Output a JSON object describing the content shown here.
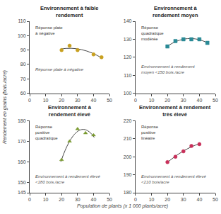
{
  "chart_data": {
    "type": "scatter",
    "xlabel": "Population de plants (x 1 000 plants/acre)",
    "ylabel": "Rendement en grains (bois./acre)",
    "grid": false,
    "subplots": [
      {
        "type": "scatter",
        "title": "Environnement à faible\nrendement",
        "xlim": [
          0,
          50
        ],
        "xticks": [
          0,
          10,
          20,
          30,
          40,
          50
        ],
        "ylim": [
          60,
          110
        ],
        "yticks": [
          60,
          70,
          80,
          90,
          100,
          110
        ],
        "series": [
          {
            "type": "line",
            "color": "#444444",
            "line_style": "solid",
            "x": [
              19.5,
              22.75,
              26,
              29.25,
              32.5,
              35.75,
              39,
              42.25,
              45.5
            ],
            "values": [
              90.72,
              91.15,
              91.22,
              90.95,
              90.32,
              89.33,
              88.0,
              86.31,
              84.27
            ]
          },
          {
            "type": "scatter",
            "color": "#c8a020",
            "marker": "circle",
            "x": [
              20,
              25,
              30,
              40,
              45
            ],
            "values": [
              90,
              93,
              90,
              87,
              85
            ]
          }
        ],
        "annotations": [
          "Réponse plate\nà négative",
          "Réponse plate à négative"
        ]
      },
      {
        "type": "scatter",
        "title": "Environnement à\nrendement moyen",
        "xlim": [
          0,
          50
        ],
        "xticks": [
          0,
          10,
          20,
          30,
          40,
          50
        ],
        "ylim": [
          100,
          140
        ],
        "yticks": [
          100,
          110,
          120,
          130,
          140
        ],
        "series": [
          {
            "type": "line",
            "color": "#444444",
            "line_style": "solid",
            "x": [
              19.5,
              22.75,
              26,
              29.25,
              32.5,
              35.75,
              39,
              42.25,
              45.5
            ],
            "values": [
              125.88,
              127.65,
              128.99,
              129.88,
              130.34,
              130.37,
              129.95,
              129.1,
              127.81
            ]
          },
          {
            "type": "scatter",
            "color": "#2a8a96",
            "marker": "square",
            "x": [
              20,
              25,
              30,
              35,
              40,
              45
            ],
            "values": [
              126,
              129,
              130,
              130,
              130,
              128
            ]
          }
        ],
        "annotations": [
          "Réponse\nquadratique\nmodérée",
          "Environnement à rendement\nmoyen <150 bois./acre"
        ]
      },
      {
        "type": "scatter",
        "title": "Environnement à\nrendement élevé",
        "xlim": [
          0,
          50
        ],
        "xticks": [
          0,
          10,
          20,
          30,
          40,
          50
        ],
        "ylim": [
          145,
          180
        ],
        "yticks": [
          145,
          150,
          160,
          170,
          180
        ],
        "series": [
          {
            "type": "line",
            "color": "#444444",
            "line_style": "solid",
            "x": [
              19.5,
              22.125,
              24.75,
              27.375,
              30,
              32.625,
              35.25,
              37.875,
              40.5
            ],
            "values": [
              160.1,
              165.43,
              169.66,
              172.78,
              174.8,
              175.72,
              175.54,
              174.25,
              171.86
            ]
          },
          {
            "type": "scatter",
            "color": "#7a9a30",
            "marker": "triangle",
            "x": [
              20,
              25,
              30,
              35,
              40
            ],
            "values": [
              161,
              170,
              176,
              174,
              173
            ]
          }
        ],
        "annotations": [
          "Réponse\npositive\nquadratique",
          "Environnement à rendement élevé\n<180 bois./acre"
        ]
      },
      {
        "type": "scatter",
        "title": "Environnement à rendement\ntrès élevé",
        "xlim": [
          0,
          50
        ],
        "xticks": [
          0,
          10,
          20,
          30,
          40,
          50
        ],
        "ylim": [
          180,
          220
        ],
        "yticks": [
          180,
          190,
          200,
          210,
          220
        ],
        "series": [
          {
            "type": "line",
            "color": "#444444",
            "line_style": "solid",
            "x": [
              19.5,
              22.125,
              24.75,
              27.375,
              30,
              32.625,
              35.25,
              37.875,
              40.5
            ],
            "values": [
              196.45,
              198.37,
              200.13,
              201.73,
              203.17,
              204.46,
              205.59,
              206.56,
              207.37
            ]
          },
          {
            "type": "scatter",
            "color": "#c8305a",
            "marker": "circle",
            "x": [
              20,
              25,
              30,
              35,
              40
            ],
            "values": [
              197,
              200,
              203,
              206,
              207
            ]
          }
        ],
        "annotations": [
          "Réponse\npositive\nlinéaire",
          "Environnement à rendement élevé\n<210 bois/acre"
        ]
      }
    ]
  }
}
